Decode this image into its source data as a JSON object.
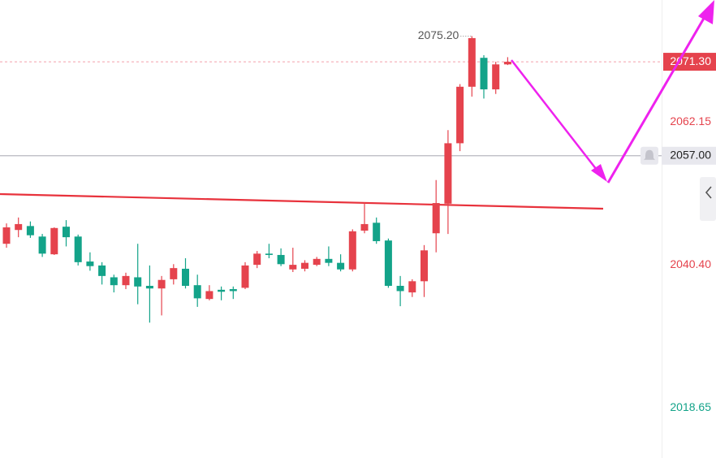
{
  "chart_data": {
    "type": "candlestick",
    "up_color": "#e5434d",
    "down_color": "#13a389",
    "series": {
      "open": [
        2043.6,
        2045.7,
        2046.3,
        2044.7,
        2042.0,
        2046.2,
        2044.7,
        2040.9,
        2040.3,
        2038.5,
        2037.3,
        2038.5,
        2037.2,
        2036.8,
        2038.2,
        2039.8,
        2037.3,
        2035.2,
        2036.6,
        2036.7,
        2036.9,
        2040.4,
        2042.1,
        2041.9,
        2039.7,
        2039.8,
        2040.4,
        2041.3,
        2040.7,
        2039.7,
        2045.6,
        2046.8,
        2044.1,
        2037.2,
        2036.2,
        2037.9,
        2045.2,
        2049.7,
        2058.9,
        2067.5,
        2071.9,
        2067.1,
        2070.9
      ],
      "high": [
        2046.7,
        2047.6,
        2047.0,
        2045.1,
        2046.1,
        2047.2,
        2045.0,
        2042.3,
        2040.8,
        2038.9,
        2039.2,
        2043.6,
        2040.3,
        2038.7,
        2040.5,
        2041.4,
        2038.9,
        2037.3,
        2037.1,
        2037.1,
        2040.8,
        2042.5,
        2043.6,
        2042.9,
        2043.0,
        2041.1,
        2041.6,
        2043.2,
        2042.0,
        2045.8,
        2049.9,
        2047.6,
        2044.4,
        2038.7,
        2038.2,
        2043.4,
        2053.3,
        2060.9,
        2067.9,
        2075.2,
        2072.3,
        2071.3,
        2072.0
      ],
      "low": [
        2043.0,
        2044.6,
        2044.5,
        2041.6,
        2041.9,
        2043.2,
        2040.3,
        2039.5,
        2037.4,
        2036.2,
        2036.7,
        2034.4,
        2031.6,
        2032.7,
        2037.4,
        2036.8,
        2034.0,
        2035.0,
        2035.0,
        2035.2,
        2036.7,
        2039.9,
        2041.4,
        2040.2,
        2039.3,
        2039.4,
        2040.2,
        2040.2,
        2039.4,
        2039.4,
        2045.2,
        2043.6,
        2036.9,
        2034.1,
        2035.5,
        2035.5,
        2042.3,
        2045.1,
        2057.7,
        2066.0,
        2065.7,
        2066.4,
        2070.8
      ],
      "close": [
        2046.1,
        2046.6,
        2044.9,
        2042.1,
        2046.0,
        2044.6,
        2040.8,
        2040.2,
        2038.7,
        2037.3,
        2038.7,
        2037.1,
        2036.8,
        2038.1,
        2039.9,
        2037.2,
        2035.3,
        2036.4,
        2036.3,
        2036.4,
        2040.3,
        2042.1,
        2041.9,
        2040.5,
        2040.4,
        2040.7,
        2041.3,
        2040.7,
        2039.7,
        2045.5,
        2046.6,
        2044.0,
        2037.2,
        2036.4,
        2037.9,
        2042.6,
        2049.8,
        2058.9,
        2067.5,
        2074.9,
        2067.1,
        2070.9,
        2071.3
      ]
    },
    "high_annotation": {
      "index": 39,
      "label": "2075.20"
    },
    "current_price": {
      "value": 2071.3,
      "label": "2071.30",
      "color": "#e5434d"
    },
    "alert_line": {
      "value": 2057.0,
      "label": "2057.00",
      "color": "#b8b8c0"
    },
    "ylim": [
      2011.0,
      2080.7
    ],
    "yticks": [
      2062.15,
      {
        "value": 2040.4,
        "label": "2040.40"
      },
      2018.65
    ],
    "ytick_colors": [
      "#e5434d",
      "#e5434d",
      "#13a389"
    ]
  }
}
